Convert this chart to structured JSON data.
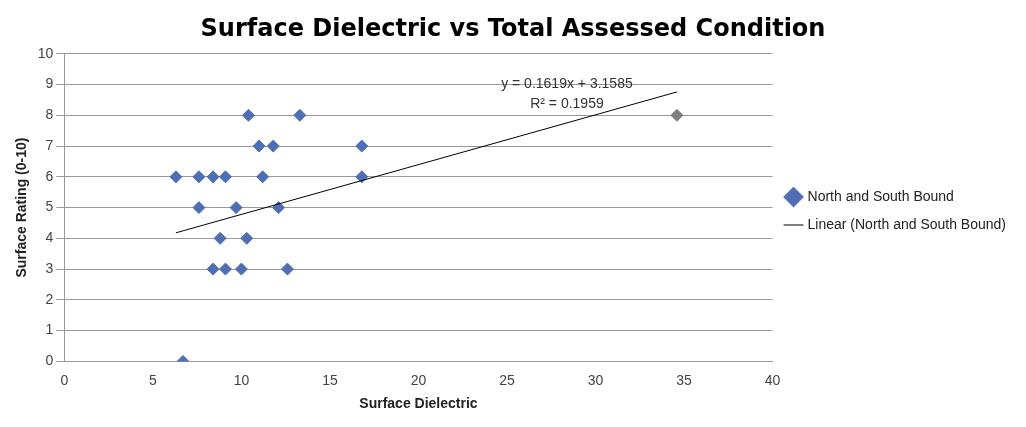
{
  "chart_data": {
    "type": "scatter",
    "title": "Surface Dielectric vs Total Assessed Condition",
    "xlabel": "Surface Dielectric",
    "ylabel": "Surface Rating (0-10)",
    "xlim": [
      0,
      40
    ],
    "xticks": [
      0,
      5,
      10,
      15,
      20,
      25,
      30,
      35,
      40
    ],
    "ylim": [
      0,
      10
    ],
    "yticks": [
      0,
      1,
      2,
      3,
      4,
      5,
      6,
      7,
      8,
      9,
      10
    ],
    "grid": "y",
    "legend": "right",
    "marker": "diamond",
    "series": [
      {
        "name": "North and South Bound",
        "type": "scatter",
        "color": "#4f6fb5",
        "colors": [
          "#4f6fb5",
          "#4f6fb5",
          "#7f7f7f",
          "#4f6fb5",
          "#4f6fb5",
          "#4f6fb5",
          "#4f6fb5",
          "#4f6fb5",
          "#4f6fb5",
          "#4f6fb5",
          "#4f6fb5",
          "#4f6fb5",
          "#4f6fb5",
          "#4f6fb5",
          "#4f6fb5",
          "#4f6fb5",
          "#4f6fb5",
          "#4f6fb5",
          "#4f6fb5",
          "#4f6fb5",
          "#4f6fb5",
          "#4f6fb5"
        ],
        "x": [
          10.4,
          13.3,
          34.6,
          11.0,
          11.8,
          16.8,
          6.3,
          7.6,
          8.4,
          9.1,
          11.2,
          16.8,
          7.6,
          9.7,
          12.1,
          8.8,
          10.3,
          8.4,
          9.1,
          10.0,
          12.6,
          6.7
        ],
        "values": [
          8,
          8,
          8,
          7,
          7,
          7,
          6,
          6,
          6,
          6,
          6,
          6,
          5,
          5,
          5,
          4,
          4,
          3,
          3,
          3,
          3,
          0
        ]
      },
      {
        "name": "Linear (North and South Bound)",
        "type": "line",
        "color": "#000000",
        "x": [
          6.3,
          34.6
        ],
        "values": [
          4.18,
          8.76
        ],
        "marker": "none"
      }
    ],
    "annotations": [
      "y = 0.1619x + 3.1585",
      "R² = 0.1959"
    ]
  }
}
